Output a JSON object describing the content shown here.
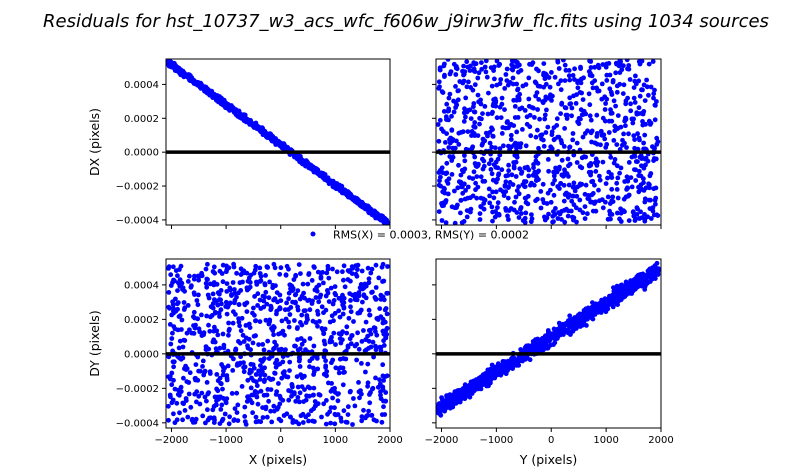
{
  "figure": {
    "title": "Residuals for hst_10737_w3_acs_wfc_f606w_j9irw3fw_flc.fits using 1034 sources",
    "legend_label": "RMS(X) = 0.0003, RMS(Y) = 0.0002",
    "marker_color": "#0000ff",
    "line_color": "#000000"
  },
  "chart_data": [
    {
      "type": "scatter",
      "panel": "top-left",
      "xlabel": "",
      "ylabel": "DX (pixels)",
      "xlim": [
        -2100,
        2000
      ],
      "ylim": [
        -0.00043,
        0.00055
      ],
      "xticks": [
        -2000,
        -1000,
        0,
        1000,
        2000
      ],
      "yticks": [
        -0.0004,
        -0.0002,
        0.0,
        0.0002,
        0.0004
      ],
      "ytick_labels": [
        "−0.0004",
        "−0.0002",
        "0.0000",
        "0.0002",
        "0.0004"
      ],
      "show_xtick_labels": false,
      "show_ytick_labels": true,
      "n_points": 1034,
      "trend": {
        "x": [
          -2060,
          1960
        ],
        "y": [
          0.00053,
          -0.00042
        ]
      },
      "scatter_spread": 1.2e-05,
      "zero_line": 0.0
    },
    {
      "type": "scatter",
      "panel": "top-right",
      "xlabel": "",
      "ylabel": "",
      "xlim": [
        -2100,
        2000
      ],
      "ylim": [
        -0.00043,
        0.00055
      ],
      "xticks": [
        -2000,
        -1000,
        0,
        1000,
        2000
      ],
      "yticks": [
        -0.0004,
        -0.0002,
        0.0,
        0.0002,
        0.0004
      ],
      "show_xtick_labels": false,
      "show_ytick_labels": false,
      "n_points": 1034,
      "uniform_y_range": [
        -0.00042,
        0.00055
      ],
      "zero_line": 0.0
    },
    {
      "type": "scatter",
      "panel": "bottom-left",
      "xlabel": "X (pixels)",
      "ylabel": "DY (pixels)",
      "xlim": [
        -2100,
        2000
      ],
      "ylim": [
        -0.00043,
        0.00055
      ],
      "xticks": [
        -2000,
        -1000,
        0,
        1000,
        2000
      ],
      "xtick_labels": [
        "−2000",
        "−1000",
        "0",
        "1000",
        "2000"
      ],
      "yticks": [
        -0.0004,
        -0.0002,
        0.0,
        0.0002,
        0.0004
      ],
      "ytick_labels": [
        "−0.0004",
        "−0.0002",
        "0.0000",
        "0.0002",
        "0.0004"
      ],
      "show_xtick_labels": true,
      "show_ytick_labels": true,
      "n_points": 1034,
      "uniform_y_range": [
        -0.00041,
        0.00052
      ],
      "zero_line": 0.0
    },
    {
      "type": "scatter",
      "panel": "bottom-right",
      "xlabel": "Y (pixels)",
      "ylabel": "",
      "xlim": [
        -2100,
        2000
      ],
      "ylim": [
        -0.00043,
        0.00055
      ],
      "xticks": [
        -2000,
        -1000,
        0,
        1000,
        2000
      ],
      "xtick_labels": [
        "−2000",
        "−1000",
        "0",
        "1000",
        "2000"
      ],
      "yticks": [
        -0.0004,
        -0.0002,
        0.0,
        0.0002,
        0.0004
      ],
      "show_xtick_labels": true,
      "show_ytick_labels": false,
      "n_points": 1034,
      "trend": {
        "x": [
          -2060,
          1960
        ],
        "y": [
          -0.00032,
          0.00049
        ]
      },
      "scatter_spread": 3e-05,
      "zero_line": 0.0
    }
  ]
}
